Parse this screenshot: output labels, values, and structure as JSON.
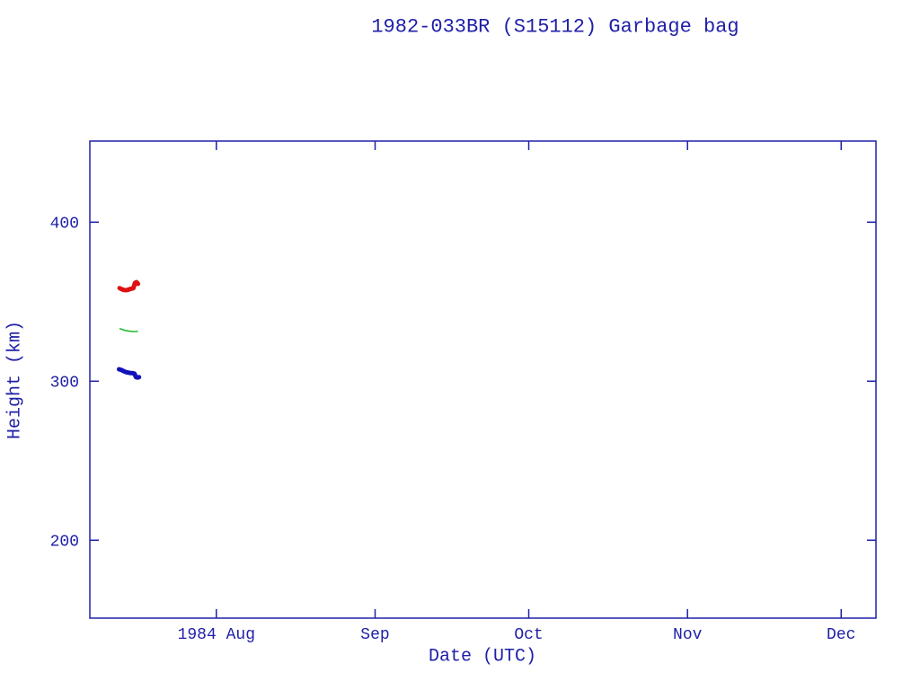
{
  "figure": {
    "background": "#ffffff"
  },
  "chart_data": {
    "type": "line",
    "title": "1982-033BR (S15112) Garbage bag",
    "xlabel": "Date (UTC)",
    "ylabel": "Height (km)",
    "text_color": "#2020a8",
    "axis_color": "#2020a8",
    "grid": false,
    "legend": "none",
    "x_unit": "days since 1984-07-01 (UTC)",
    "xlim": [
      6.3,
      159.8
    ],
    "ylim": [
      151,
      451
    ],
    "x_ticks": [
      {
        "value": 31,
        "label": "1984 Aug"
      },
      {
        "value": 62,
        "label": "Sep"
      },
      {
        "value": 92,
        "label": "Oct"
      },
      {
        "value": 123,
        "label": "Nov"
      },
      {
        "value": 153,
        "label": "Dec"
      }
    ],
    "y_ticks": [
      {
        "value": 200,
        "label": "200"
      },
      {
        "value": 300,
        "label": "300"
      },
      {
        "value": 400,
        "label": "400"
      }
    ],
    "series": [
      {
        "name": "apogee-height",
        "color": "#dd1111",
        "stroke_width": 5,
        "x": [
          12.1,
          12.4,
          12.7,
          13.0,
          13.3,
          13.6,
          13.9,
          14.2,
          14.5,
          14.8,
          15.1,
          15.4,
          15.7
        ],
        "y": [
          358.5,
          358.0,
          357.6,
          357.3,
          357.2,
          357.3,
          357.6,
          358.0,
          358.2,
          358.5,
          361.8,
          362.3,
          361.2
        ]
      },
      {
        "name": "mean-height",
        "color": "#22bb33",
        "stroke_width": 1.6,
        "x": [
          12.2,
          12.7,
          13.2,
          13.7,
          14.2,
          14.7,
          15.2,
          15.6
        ],
        "y": [
          333.0,
          332.4,
          331.9,
          331.6,
          331.4,
          331.3,
          331.2,
          331.2
        ]
      },
      {
        "name": "perigee-height",
        "color": "#1111bb",
        "stroke_width": 5,
        "x": [
          12.0,
          12.3,
          12.6,
          12.9,
          13.2,
          13.5,
          13.8,
          14.1,
          14.4,
          14.7,
          15.0,
          15.3,
          15.6,
          15.9
        ],
        "y": [
          307.5,
          307.2,
          306.8,
          306.3,
          305.9,
          305.6,
          305.4,
          305.2,
          305.1,
          305.0,
          304.8,
          302.6,
          302.3,
          302.5
        ]
      }
    ]
  }
}
